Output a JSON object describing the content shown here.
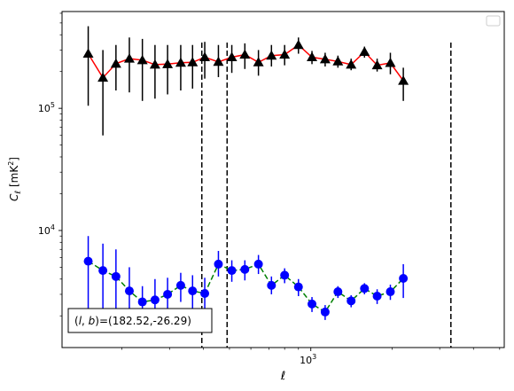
{
  "chart_data": {
    "type": "line",
    "xscale": "log",
    "yscale": "log",
    "xlim": [
      120,
      5200
    ],
    "ylim": [
      1100,
      620000
    ],
    "xlabel": "ℓ",
    "ylabel_main": "C",
    "ylabel_sub": "ℓ",
    "ylabel_unit": "[mK",
    "ylabel_unit_sup": "2",
    "ylabel_unit_end": "]",
    "x_ticks": [
      {
        "value": 1000,
        "base": "10",
        "exp": "3"
      }
    ],
    "y_ticks": [
      {
        "value": 10000,
        "base": "10",
        "exp": "4"
      },
      {
        "value": 100000,
        "base": "10",
        "exp": "5"
      }
    ],
    "annotation": "(l, b)=(182.52,-26.29)",
    "annotation_parts": {
      "open": "(",
      "l": "l",
      "comma": ", ",
      "b": "b",
      "close": ")=(182.52,-26.29)"
    },
    "legend": {
      "placement": "upper right",
      "entries": []
    },
    "vlines": [
      395,
      490,
      3300
    ],
    "vline_color": "#000000",
    "series": [
      {
        "marker": "triangle",
        "color": "#000000",
        "line_color": "#ff0000",
        "linestyle": "solid",
        "points": [
          {
            "x": 150,
            "y": 280000,
            "ylo": 105000,
            "yhi": 470000
          },
          {
            "x": 170,
            "y": 178000,
            "ylo": 60000,
            "yhi": 300000
          },
          {
            "x": 190,
            "y": 232000,
            "ylo": 140000,
            "yhi": 330000
          },
          {
            "x": 213,
            "y": 255000,
            "ylo": 135000,
            "yhi": 380000
          },
          {
            "x": 238,
            "y": 248000,
            "ylo": 115000,
            "yhi": 370000
          },
          {
            "x": 265,
            "y": 228000,
            "ylo": 120000,
            "yhi": 330000
          },
          {
            "x": 295,
            "y": 230000,
            "ylo": 130000,
            "yhi": 330000
          },
          {
            "x": 330,
            "y": 236000,
            "ylo": 140000,
            "yhi": 330000
          },
          {
            "x": 365,
            "y": 238000,
            "ylo": 145000,
            "yhi": 330000
          },
          {
            "x": 405,
            "y": 262000,
            "ylo": 175000,
            "yhi": 350000
          },
          {
            "x": 455,
            "y": 240000,
            "ylo": 180000,
            "yhi": 330000
          },
          {
            "x": 510,
            "y": 262000,
            "ylo": 195000,
            "yhi": 330000
          },
          {
            "x": 570,
            "y": 275000,
            "ylo": 210000,
            "yhi": 340000
          },
          {
            "x": 640,
            "y": 238000,
            "ylo": 185000,
            "yhi": 300000
          },
          {
            "x": 715,
            "y": 270000,
            "ylo": 220000,
            "yhi": 330000
          },
          {
            "x": 800,
            "y": 275000,
            "ylo": 225000,
            "yhi": 330000
          },
          {
            "x": 900,
            "y": 330000,
            "ylo": 280000,
            "yhi": 380000
          },
          {
            "x": 1010,
            "y": 262000,
            "ylo": 230000,
            "yhi": 295000
          },
          {
            "x": 1130,
            "y": 252000,
            "ylo": 220000,
            "yhi": 285000
          },
          {
            "x": 1260,
            "y": 242000,
            "ylo": 215000,
            "yhi": 270000
          },
          {
            "x": 1410,
            "y": 228000,
            "ylo": 205000,
            "yhi": 255000
          },
          {
            "x": 1580,
            "y": 290000,
            "ylo": 260000,
            "yhi": 320000
          },
          {
            "x": 1760,
            "y": 225000,
            "ylo": 200000,
            "yhi": 255000
          },
          {
            "x": 1970,
            "y": 235000,
            "ylo": 190000,
            "yhi": 285000
          },
          {
            "x": 2200,
            "y": 168000,
            "ylo": 115000,
            "yhi": 215000
          }
        ]
      },
      {
        "marker": "circle",
        "color": "#0000ff",
        "line_color": "#008000",
        "linestyle": "dashed",
        "points": [
          {
            "x": 150,
            "y": 5600,
            "ylo": 2000,
            "yhi": 9000
          },
          {
            "x": 170,
            "y": 4700,
            "ylo": 1800,
            "yhi": 7800
          },
          {
            "x": 190,
            "y": 4200,
            "ylo": 1800,
            "yhi": 7000
          },
          {
            "x": 213,
            "y": 3200,
            "ylo": 1800,
            "yhi": 5000
          },
          {
            "x": 238,
            "y": 2600,
            "ylo": 1800,
            "yhi": 3500
          },
          {
            "x": 265,
            "y": 2700,
            "ylo": 1600,
            "yhi": 4000
          },
          {
            "x": 295,
            "y": 3000,
            "ylo": 2000,
            "yhi": 4100
          },
          {
            "x": 330,
            "y": 3550,
            "ylo": 2600,
            "yhi": 4500
          },
          {
            "x": 365,
            "y": 3200,
            "ylo": 2200,
            "yhi": 4300
          },
          {
            "x": 405,
            "y": 3050,
            "ylo": 2000,
            "yhi": 4100
          },
          {
            "x": 455,
            "y": 5300,
            "ylo": 4200,
            "yhi": 6800
          },
          {
            "x": 510,
            "y": 4700,
            "ylo": 3800,
            "yhi": 5700
          },
          {
            "x": 570,
            "y": 4800,
            "ylo": 3900,
            "yhi": 5700
          },
          {
            "x": 640,
            "y": 5300,
            "ylo": 4400,
            "yhi": 6300
          },
          {
            "x": 715,
            "y": 3550,
            "ylo": 3000,
            "yhi": 4200
          },
          {
            "x": 800,
            "y": 4300,
            "ylo": 3700,
            "yhi": 4900
          },
          {
            "x": 900,
            "y": 3450,
            "ylo": 2900,
            "yhi": 4000
          },
          {
            "x": 1010,
            "y": 2500,
            "ylo": 2150,
            "yhi": 2850
          },
          {
            "x": 1130,
            "y": 2150,
            "ylo": 1850,
            "yhi": 2450
          },
          {
            "x": 1260,
            "y": 3150,
            "ylo": 2800,
            "yhi": 3500
          },
          {
            "x": 1410,
            "y": 2650,
            "ylo": 2350,
            "yhi": 2950
          },
          {
            "x": 1580,
            "y": 3350,
            "ylo": 3000,
            "yhi": 3700
          },
          {
            "x": 1760,
            "y": 2900,
            "ylo": 2500,
            "yhi": 3300
          },
          {
            "x": 1970,
            "y": 3150,
            "ylo": 2700,
            "yhi": 3600
          },
          {
            "x": 2200,
            "y": 4050,
            "ylo": 2800,
            "yhi": 5300
          }
        ]
      }
    ]
  }
}
